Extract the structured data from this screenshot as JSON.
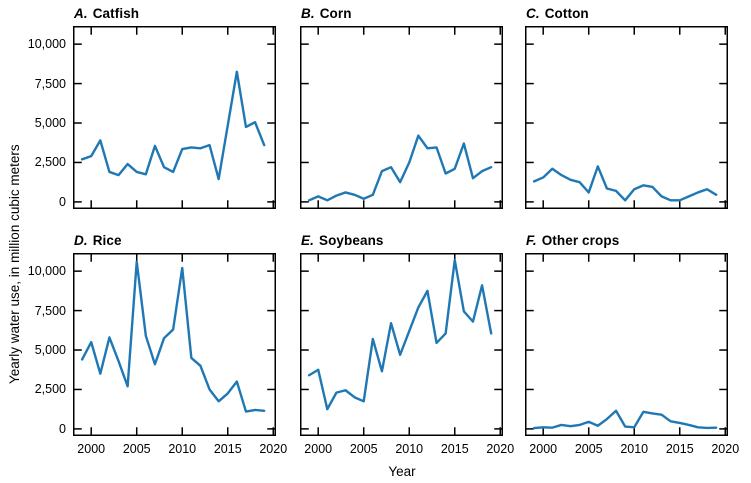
{
  "figure": {
    "y_axis_label": "Yearly water use, in million cubic meters",
    "x_axis_label": "Year",
    "line_color": "#1f78b4",
    "frame_color": "#000000",
    "background_color": "#ffffff",
    "axes": {
      "xlim": [
        1998.0,
        2020.3
      ],
      "ylim": [
        -450,
        11150
      ],
      "xticks": [
        2000,
        2005,
        2010,
        2015,
        2020
      ],
      "yticks": [
        0,
        2500,
        5000,
        7500,
        10000
      ],
      "grid": false,
      "tick_direction": "in",
      "x_tick_labels_on": "bottom-row-only",
      "y_tick_labels_on": "left-column-only"
    }
  },
  "chart_data": [
    {
      "type": "line",
      "panel_letter": "A.",
      "title": "Catfish",
      "years": [
        1999,
        2000,
        2001,
        2002,
        2003,
        2004,
        2005,
        2006,
        2007,
        2008,
        2009,
        2010,
        2011,
        2012,
        2013,
        2014,
        2015,
        2016,
        2017,
        2018,
        2019
      ],
      "values": [
        2700,
        2900,
        3900,
        1900,
        1700,
        2400,
        1900,
        1750,
        3550,
        2200,
        1900,
        3350,
        3450,
        3400,
        3600,
        1450,
        4850,
        8250,
        4750,
        5050,
        3600
      ]
    },
    {
      "type": "line",
      "panel_letter": "B.",
      "title": "Corn",
      "years": [
        1999,
        2000,
        2001,
        2002,
        2003,
        2004,
        2005,
        2006,
        2007,
        2008,
        2009,
        2010,
        2011,
        2012,
        2013,
        2014,
        2015,
        2016,
        2017,
        2018,
        2019
      ],
      "values": [
        100,
        350,
        100,
        400,
        600,
        450,
        200,
        450,
        1950,
        2200,
        1250,
        2500,
        4200,
        3400,
        3450,
        1800,
        2100,
        3700,
        1500,
        1950,
        2200
      ]
    },
    {
      "type": "line",
      "panel_letter": "C.",
      "title": "Cotton",
      "years": [
        1999,
        2000,
        2001,
        2002,
        2003,
        2004,
        2005,
        2006,
        2007,
        2008,
        2009,
        2010,
        2011,
        2012,
        2013,
        2014,
        2015,
        2016,
        2017,
        2018,
        2019
      ],
      "values": [
        1300,
        1550,
        2100,
        1700,
        1400,
        1250,
        600,
        2250,
        850,
        700,
        100,
        800,
        1050,
        950,
        350,
        100,
        100,
        350,
        600,
        800,
        450
      ]
    },
    {
      "type": "line",
      "panel_letter": "D.",
      "title": "Rice",
      "years": [
        1999,
        2000,
        2001,
        2002,
        2003,
        2004,
        2005,
        2006,
        2007,
        2008,
        2009,
        2010,
        2011,
        2012,
        2013,
        2014,
        2015,
        2016,
        2017,
        2018,
        2019
      ],
      "values": [
        4400,
        5500,
        3500,
        5800,
        4300,
        2700,
        10600,
        5900,
        4100,
        5750,
        6300,
        10200,
        4500,
        4000,
        2500,
        1750,
        2250,
        3000,
        1100,
        1200,
        1150
      ]
    },
    {
      "type": "line",
      "panel_letter": "E.",
      "title": "Soybeans",
      "years": [
        1999,
        2000,
        2001,
        2002,
        2003,
        2004,
        2005,
        2006,
        2007,
        2008,
        2009,
        2010,
        2011,
        2012,
        2013,
        2014,
        2015,
        2016,
        2017,
        2018,
        2019
      ],
      "values": [
        3400,
        3750,
        1250,
        2300,
        2450,
        2000,
        1750,
        5700,
        3650,
        6700,
        4700,
        6200,
        7700,
        8750,
        5450,
        6050,
        10700,
        7450,
        6800,
        9100,
        6050
      ]
    },
    {
      "type": "line",
      "panel_letter": "F.",
      "title": "Other crops",
      "years": [
        1999,
        2000,
        2001,
        2002,
        2003,
        2004,
        2005,
        2006,
        2007,
        2008,
        2009,
        2010,
        2011,
        2012,
        2013,
        2014,
        2015,
        2016,
        2017,
        2018,
        2019
      ],
      "values": [
        50,
        100,
        80,
        250,
        170,
        250,
        450,
        200,
        625,
        1150,
        150,
        100,
        1080,
        980,
        900,
        480,
        375,
        250,
        100,
        60,
        80
      ]
    }
  ]
}
